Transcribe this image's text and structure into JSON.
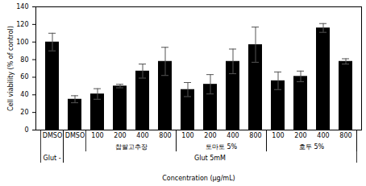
{
  "chart_data": {
    "type": "bar",
    "x_label": "Concentration (μg/mL)",
    "y_label": "Cell viability (% of control)",
    "categories": [
      "DMSO",
      "DMSO",
      "100",
      "200",
      "400",
      "800",
      "100",
      "200",
      "400",
      "800",
      "100",
      "200",
      "400",
      "800"
    ],
    "values": [
      100,
      35,
      41,
      50,
      67,
      78,
      46,
      52,
      78,
      97,
      56,
      61,
      116,
      78
    ],
    "errors": [
      10,
      4,
      6,
      2,
      8,
      16,
      8,
      11,
      14,
      20,
      10,
      6,
      5,
      3
    ],
    "color": "#000000",
    "ylim": [
      0,
      140
    ],
    "yticks": [
      0,
      20,
      40,
      60,
      80,
      100,
      120,
      140
    ],
    "groups": [
      {
        "label": "찹쌀고추장",
        "start": 2,
        "end": 5
      },
      {
        "label": "토마토 5%",
        "start": 6,
        "end": 9
      },
      {
        "label": "호두 5%",
        "start": 10,
        "end": 13
      }
    ],
    "conditions": [
      {
        "label": "Glut -",
        "start": 0,
        "end": 0
      },
      {
        "label": "Glut 5mM",
        "start": 1,
        "end": 13
      }
    ]
  }
}
